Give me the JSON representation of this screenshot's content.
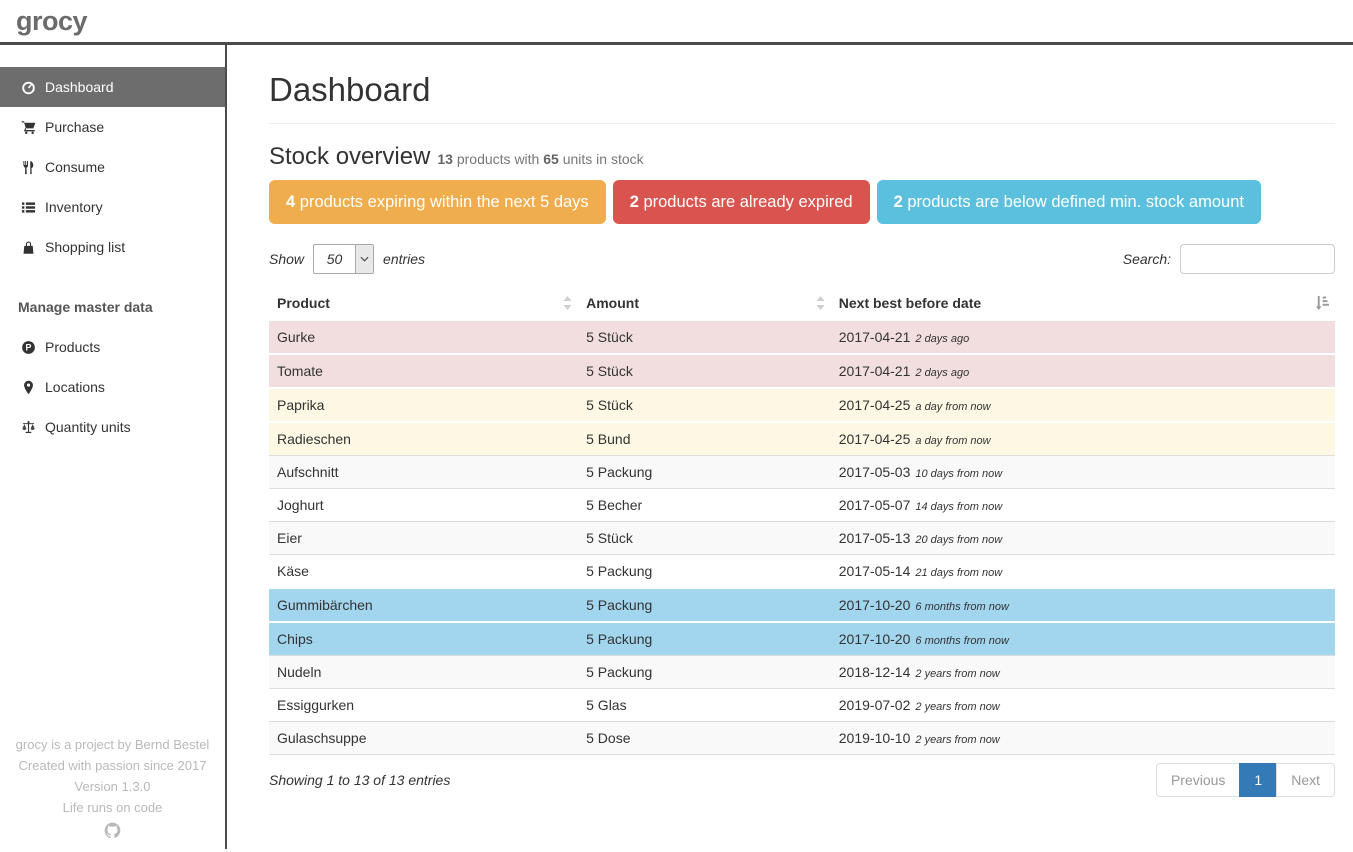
{
  "brand": "grocy",
  "sidebar": {
    "nav": [
      {
        "label": "Dashboard",
        "icon": "tachometer-icon",
        "active": true
      },
      {
        "label": "Purchase",
        "icon": "shopping-cart-icon",
        "active": false
      },
      {
        "label": "Consume",
        "icon": "utensils-icon",
        "active": false
      },
      {
        "label": "Inventory",
        "icon": "list-icon",
        "active": false
      },
      {
        "label": "Shopping list",
        "icon": "shopping-bag-icon",
        "active": false
      }
    ],
    "section_header": "Manage master data",
    "master_nav": [
      {
        "label": "Products",
        "icon": "product-circle-icon",
        "active": false
      },
      {
        "label": "Locations",
        "icon": "map-marker-icon",
        "active": false
      },
      {
        "label": "Quantity units",
        "icon": "balance-scale-icon",
        "active": false
      }
    ],
    "footer_lines": [
      "grocy is a project by Bernd Bestel",
      "Created with passion since 2017",
      "Version 1.3.0",
      "Life runs on code"
    ],
    "footer_icon": "github-icon"
  },
  "page": {
    "title": "Dashboard"
  },
  "stock": {
    "heading": "Stock overview",
    "products_count": "13",
    "between_text": " products with ",
    "units_count": "65",
    "after_text": " units in stock",
    "badges": [
      {
        "count": "4",
        "label": " products expiring within the next 5 days",
        "color": "#f0ad4e"
      },
      {
        "count": "2",
        "label": " products are already expired",
        "color": "#d9534f"
      },
      {
        "count": "2",
        "label": " products are below defined min. stock amount",
        "color": "#5bc0de"
      }
    ]
  },
  "controls": {
    "show_label": "Show",
    "page_length": "50",
    "entries_label": "entries",
    "search_label": "Search:",
    "search_value": ""
  },
  "table": {
    "columns": [
      {
        "label": "Product",
        "sort_icon": "sort-unsorted-icon"
      },
      {
        "label": "Amount",
        "sort_icon": "sort-unsorted-icon"
      },
      {
        "label": "Next best before date",
        "sort_icon": "sort-amount-asc-icon"
      }
    ],
    "rows": [
      {
        "product": "Gurke",
        "amount": "5 Stück",
        "date": "2017-04-21",
        "due": "2 days ago",
        "highlight": "danger"
      },
      {
        "product": "Tomate",
        "amount": "5 Stück",
        "date": "2017-04-21",
        "due": "2 days ago",
        "highlight": "danger"
      },
      {
        "product": "Paprika",
        "amount": "5 Stück",
        "date": "2017-04-25",
        "due": "a day from now",
        "highlight": "warning"
      },
      {
        "product": "Radieschen",
        "amount": "5 Bund",
        "date": "2017-04-25",
        "due": "a day from now",
        "highlight": "warning"
      },
      {
        "product": "Aufschnitt",
        "amount": "5 Packung",
        "date": "2017-05-03",
        "due": "10 days from now",
        "highlight": ""
      },
      {
        "product": "Joghurt",
        "amount": "5 Becher",
        "date": "2017-05-07",
        "due": "14 days from now",
        "highlight": ""
      },
      {
        "product": "Eier",
        "amount": "5 Stück",
        "date": "2017-05-13",
        "due": "20 days from now",
        "highlight": ""
      },
      {
        "product": "Käse",
        "amount": "5 Packung",
        "date": "2017-05-14",
        "due": "21 days from now",
        "highlight": ""
      },
      {
        "product": "Gummibärchen",
        "amount": "5 Packung",
        "date": "2017-10-20",
        "due": "6 months from now",
        "highlight": "info"
      },
      {
        "product": "Chips",
        "amount": "5 Packung",
        "date": "2017-10-20",
        "due": "6 months from now",
        "highlight": "info"
      },
      {
        "product": "Nudeln",
        "amount": "5 Packung",
        "date": "2018-12-14",
        "due": "2 years from now",
        "highlight": ""
      },
      {
        "product": "Essiggurken",
        "amount": "5 Glas",
        "date": "2019-07-02",
        "due": "2 years from now",
        "highlight": ""
      },
      {
        "product": "Gulaschsuppe",
        "amount": "5 Dose",
        "date": "2019-10-10",
        "due": "2 years from now",
        "highlight": ""
      }
    ]
  },
  "footer": {
    "info": "Showing 1 to 13 of 13 entries",
    "prev_label": "Previous",
    "page": "1",
    "next_label": "Next"
  },
  "colors": {
    "accent_blue": "#337ab7",
    "badge_warning": "#f0ad4e",
    "badge_danger": "#d9534f",
    "badge_info": "#5bc0de",
    "row_danger": "#f2dede",
    "row_warning": "#fcf8e3",
    "row_info": "#a2d5ee"
  }
}
